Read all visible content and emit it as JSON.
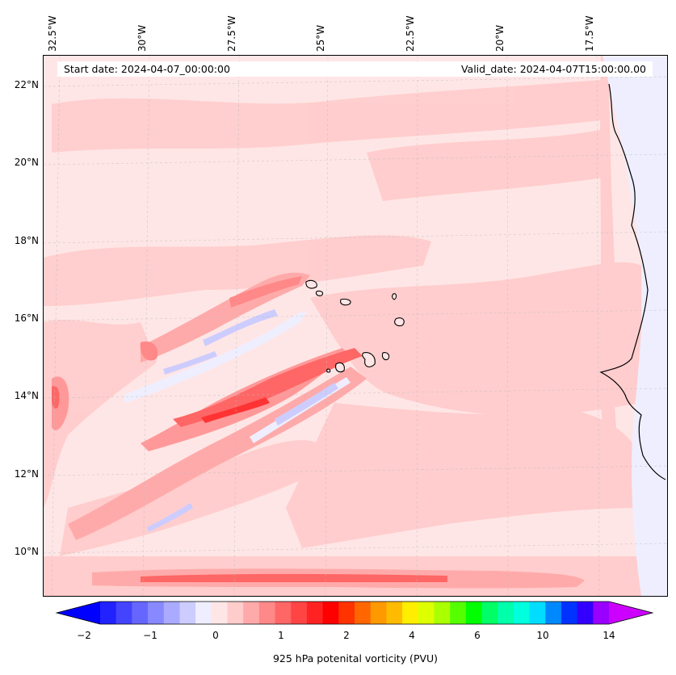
{
  "map": {
    "start_date_text": "Start date: 2024-04-07_00:00:00",
    "valid_date_text": "Valid_date: 2024-04-07T15:00:00.00",
    "lon_labels": [
      "32.5°W",
      "30°W",
      "27.5°W",
      "25°W",
      "22.5°W",
      "20°W",
      "17.5°W"
    ],
    "lat_labels": [
      "22°N",
      "20°N",
      "18°N",
      "16°N",
      "14°N",
      "12°N",
      "10°N"
    ],
    "colors": {
      "background_field": "#ffe6e6",
      "low_positive": "#ffcccc",
      "mid_positive": "#ff9999",
      "high_positive": "#ff6666",
      "peak_positive": "#ff3333",
      "slightly_negative": "#eeeeff",
      "negative": "#ccccff",
      "more_negative": "#aaaaff",
      "coastline": "#000000"
    }
  },
  "colorbar": {
    "label": "925 hPa potenital vorticity (PVU)",
    "ticks": [
      "−2",
      "−1",
      "0",
      "1",
      "2",
      "4",
      "6",
      "10",
      "14"
    ],
    "colors": [
      "#0000ff",
      "#2222ff",
      "#4444ff",
      "#6666ff",
      "#8888ff",
      "#aaaaff",
      "#ccccff",
      "#eeeeff",
      "#ffe6e6",
      "#ffcccc",
      "#ffaaaa",
      "#ff8888",
      "#ff6666",
      "#ff4444",
      "#ff2222",
      "#ff0000",
      "#ff3300",
      "#ff6600",
      "#ff9900",
      "#ffbb00",
      "#ffee00",
      "#ddff00",
      "#aaff00",
      "#55ff00",
      "#00ff00",
      "#00ff66",
      "#00ffaa",
      "#00ffdd",
      "#00ddff",
      "#0088ff",
      "#0033ff",
      "#3300ff",
      "#9900ff",
      "#cc00ff"
    ]
  }
}
